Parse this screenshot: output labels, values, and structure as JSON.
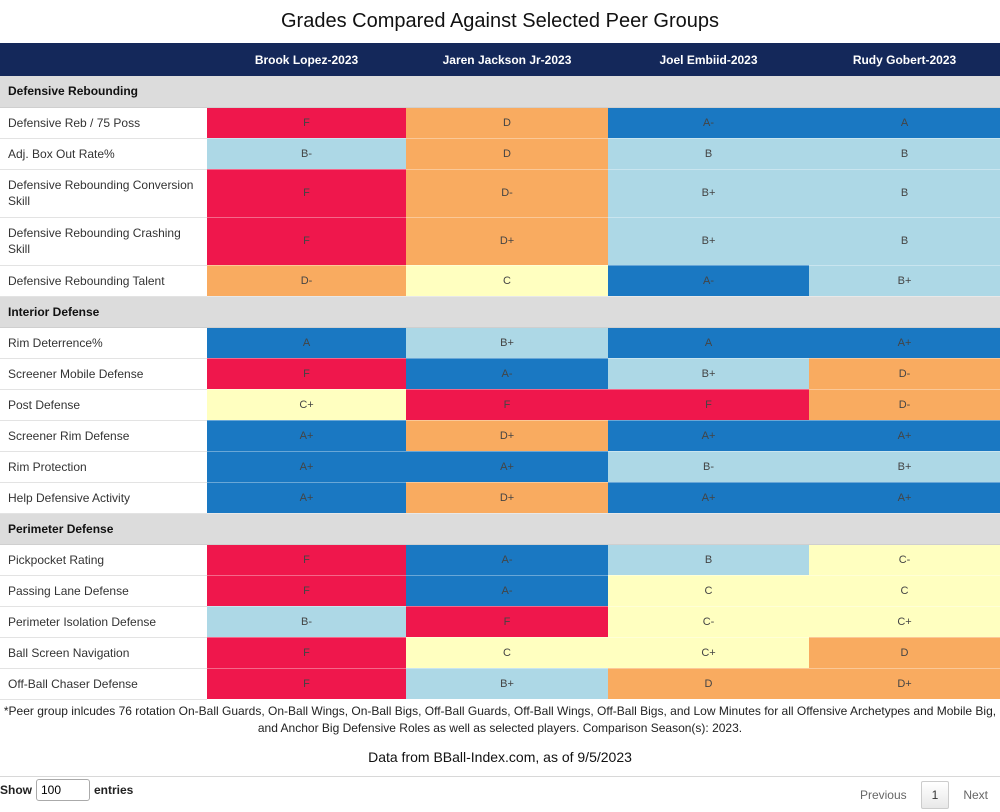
{
  "title": "Grades Compared Against Selected Peer Groups",
  "colors": {
    "header_bg": "#14285a",
    "section_bg": "#dcdcdc",
    "A_tier": "#1a78c2",
    "B_tier": "#add8e6",
    "C_tier": "#ffffc0",
    "D_tier": "#f9ab60",
    "F_tier": "#ef174c"
  },
  "players": [
    "Brook Lopez-2023",
    "Jaren Jackson Jr-2023",
    "Joel Embiid-2023",
    "Rudy Gobert-2023"
  ],
  "sections": [
    {
      "name": "Defensive Rebounding",
      "rows": [
        {
          "label": "Defensive Reb / 75 Poss",
          "grades": [
            "F",
            "D",
            "A-",
            "A"
          ]
        },
        {
          "label": "Adj. Box Out Rate%",
          "grades": [
            "B-",
            "D",
            "B",
            "B"
          ]
        },
        {
          "label": "Defensive Rebounding Conversion Skill",
          "grades": [
            "F",
            "D-",
            "B+",
            "B"
          ]
        },
        {
          "label": "Defensive Rebounding Crashing Skill",
          "grades": [
            "F",
            "D+",
            "B+",
            "B"
          ]
        },
        {
          "label": "Defensive Rebounding Talent",
          "grades": [
            "D-",
            "C",
            "A-",
            "B+"
          ]
        }
      ]
    },
    {
      "name": "Interior Defense",
      "rows": [
        {
          "label": "Rim Deterrence%",
          "grades": [
            "A",
            "B+",
            "A",
            "A+"
          ]
        },
        {
          "label": "Screener Mobile Defense",
          "grades": [
            "F",
            "A-",
            "B+",
            "D-"
          ]
        },
        {
          "label": "Post Defense",
          "grades": [
            "C+",
            "F",
            "F",
            "D-"
          ]
        },
        {
          "label": "Screener Rim Defense",
          "grades": [
            "A+",
            "D+",
            "A+",
            "A+"
          ]
        },
        {
          "label": "Rim Protection",
          "grades": [
            "A+",
            "A+",
            "B-",
            "B+"
          ]
        },
        {
          "label": "Help Defensive Activity",
          "grades": [
            "A+",
            "D+",
            "A+",
            "A+"
          ]
        }
      ]
    },
    {
      "name": "Perimeter Defense",
      "rows": [
        {
          "label": "Pickpocket Rating",
          "grades": [
            "F",
            "A-",
            "B",
            "C-"
          ]
        },
        {
          "label": "Passing Lane Defense",
          "grades": [
            "F",
            "A-",
            "C",
            "C"
          ]
        },
        {
          "label": "Perimeter Isolation Defense",
          "grades": [
            "B-",
            "F",
            "C-",
            "C+"
          ]
        },
        {
          "label": "Ball Screen Navigation",
          "grades": [
            "F",
            "C",
            "C+",
            "D"
          ]
        },
        {
          "label": "Off-Ball Chaser Defense",
          "grades": [
            "F",
            "B+",
            "D",
            "D+"
          ]
        }
      ]
    }
  ],
  "footnote": "*Peer group inlcudes 76 rotation On-Ball Guards, On-Ball Wings, On-Ball Bigs, Off-Ball Guards, Off-Ball Wings, Off-Ball Bigs, and Low Minutes for all Offensive Archetypes and Mobile Big, and Anchor Big Defensive Roles as well as selected players. Comparison Season(s): 2023.",
  "source": "Data from BBall-Index.com, as of 9/5/2023",
  "controls": {
    "show_label": "Show",
    "entries_value": "100",
    "entries_label": "entries",
    "previous": "Previous",
    "page": "1",
    "next": "Next"
  }
}
